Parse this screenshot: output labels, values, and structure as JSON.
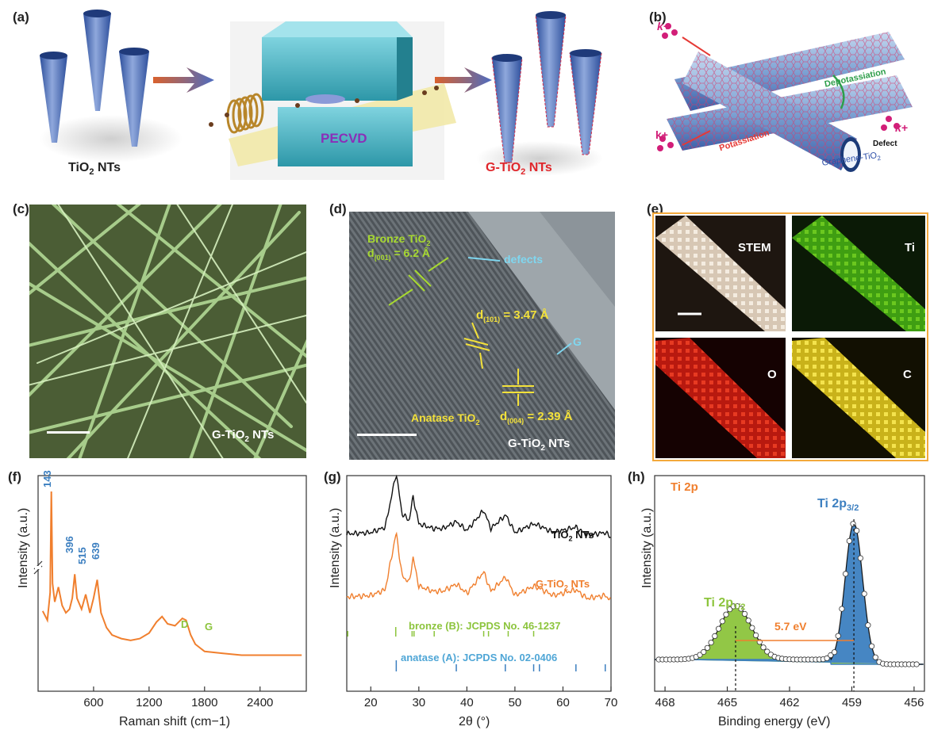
{
  "panels": {
    "a": "(a)",
    "b": "(b)",
    "c": "(c)",
    "d": "(d)",
    "e": "(e)",
    "f": "(f)",
    "g": "(g)",
    "h": "(h)"
  },
  "panel_a": {
    "left_label_main": "TiO",
    "left_label_sub": "2",
    "left_label_tail": " NTs",
    "center_label": "PECVD",
    "right_label_main": "G-TiO",
    "right_label_sub": "2",
    "right_label_tail": " NTs"
  },
  "panel_b": {
    "k1": "k+",
    "k2": "k+",
    "k3": "k+",
    "depotassiation": "Depotassiation",
    "potassiation": "Potassiation",
    "defect": "Defect",
    "graphene": "Graphene-TiO",
    "graphene_sub": "2"
  },
  "panel_c": {
    "label_main": "G-TiO",
    "label_sub": "2",
    "label_tail": " NTs"
  },
  "panel_d": {
    "bronze": "Bronze TiO",
    "bronze_sub": "2",
    "d001": "d",
    "d001_sub": "(001)",
    "d001_val": " = 6.2 Å",
    "defects": "defects",
    "d101": "d",
    "d101_sub": "(101)",
    "d101_val": " = 3.47 Å",
    "g_label": "G",
    "anatase": "Anatase TiO",
    "anatase_sub": "2",
    "d004": "d",
    "d004_sub": "(004)",
    "d004_val": " = 2.39 Å",
    "label_main": "G-TiO",
    "label_sub": "2",
    "label_tail": " NTs"
  },
  "panel_e": {
    "stem": "STEM",
    "ti": "Ti",
    "o": "O",
    "c": "C"
  },
  "panel_f": {
    "ylabel": "Intensity (a.u.)",
    "xlabel": "Raman shift (cm−1)",
    "peak_143": "143",
    "peak_396": "396",
    "peak_515": "515",
    "peak_639": "639",
    "peak_D": "D",
    "peak_G": "G",
    "xticks": [
      "600",
      "1200",
      "1800",
      "2400"
    ]
  },
  "panel_g": {
    "ylabel": "Intensity (a.u.)",
    "xlabel": "2θ (°)",
    "tio2": "TiO",
    "tio2_sub": "2",
    "tio2_tail": " NTs",
    "gtio2": "G-TiO",
    "gtio2_sub": "2",
    "gtio2_tail": " NTs",
    "bronze": "bronze (B): JCPDS No. 46-1237",
    "anatase": "anatase (A): JCPDS No. 02-0406",
    "xticks": [
      "20",
      "30",
      "40",
      "50",
      "60",
      "70"
    ]
  },
  "panel_h": {
    "ylabel": "Intensity (a.u.)",
    "xlabel": "Binding energy (eV)",
    "title": "Ti 2p",
    "p32": "Ti 2p",
    "p32_sub": "3/2",
    "p12": "Ti 2p",
    "p12_sub": "1/2",
    "split": "5.7 eV",
    "xticks": [
      "468",
      "465",
      "462",
      "459",
      "456"
    ]
  },
  "colors": {
    "orange": "#f07f2e",
    "blue": "#3c7fc0",
    "green": "#8cc43c",
    "black": "#111111",
    "lightblue": "#4fa6d6"
  },
  "chart_data": [
    {
      "type": "line",
      "panel": "f",
      "xlabel": "Raman shift (cm−1)",
      "ylabel": "Intensity (a.u.)",
      "xlim": [
        0,
        2900
      ],
      "series": [
        {
          "x": [
            50,
            100,
            130,
            143,
            156,
            180,
            220,
            260,
            300,
            340,
            370,
            396,
            420,
            470,
            515,
            560,
            600,
            639,
            680,
            740,
            800,
            900,
            1000,
            1100,
            1200,
            1280,
            1340,
            1400,
            1480,
            1560,
            1600,
            1650,
            1700,
            1800,
            2000,
            2200,
            2400,
            2600,
            2850
          ],
          "y": [
            0.35,
            0.3,
            0.45,
            1.0,
            0.5,
            0.4,
            0.48,
            0.38,
            0.34,
            0.36,
            0.42,
            0.55,
            0.42,
            0.36,
            0.44,
            0.34,
            0.42,
            0.52,
            0.34,
            0.26,
            0.22,
            0.2,
            0.19,
            0.2,
            0.23,
            0.29,
            0.32,
            0.28,
            0.27,
            0.31,
            0.3,
            0.22,
            0.17,
            0.13,
            0.12,
            0.11,
            0.11,
            0.11,
            0.11
          ]
        }
      ]
    },
    {
      "type": "line",
      "panel": "g",
      "xlabel": "2θ (°)",
      "ylabel": "Intensity (a.u.)",
      "xlim": [
        15,
        70
      ],
      "series": [
        {
          "name": "TiO2 NTs",
          "x": [
            15,
            20,
            23,
            25.3,
            26.5,
            28,
            28.8,
            30,
            33,
            35,
            37.8,
            40,
            43.5,
            45,
            48.1,
            50,
            53.9,
            55.1,
            58,
            62.7,
            65,
            68.8,
            70
          ],
          "y": [
            0.1,
            0.12,
            0.2,
            1.0,
            0.4,
            0.3,
            0.65,
            0.25,
            0.18,
            0.18,
            0.28,
            0.15,
            0.45,
            0.18,
            0.38,
            0.12,
            0.25,
            0.22,
            0.12,
            0.2,
            0.08,
            0.12,
            0.05
          ]
        },
        {
          "name": "G-TiO2 NTs",
          "x": [
            15,
            20,
            23,
            25.3,
            26.5,
            28,
            28.8,
            30,
            33,
            35,
            37.8,
            40,
            43.5,
            45,
            48.1,
            50,
            53.9,
            55.1,
            58,
            62.7,
            65,
            68.8,
            70
          ],
          "y": [
            0.1,
            0.12,
            0.2,
            1.0,
            0.4,
            0.3,
            0.65,
            0.25,
            0.18,
            0.18,
            0.28,
            0.15,
            0.45,
            0.18,
            0.38,
            0.12,
            0.25,
            0.22,
            0.12,
            0.2,
            0.08,
            0.12,
            0.05
          ]
        }
      ],
      "bronze_refs": [
        15.2,
        25.2,
        28.6,
        29.0,
        33.2,
        43.5,
        44.5,
        48.6,
        53.9
      ],
      "anatase_refs": [
        25.3,
        37.8,
        48.0,
        53.9,
        55.1,
        62.7,
        68.8
      ]
    },
    {
      "type": "line",
      "panel": "h",
      "xlabel": "Binding energy (eV)",
      "ylabel": "Intensity (a.u.)",
      "xlim": [
        468.5,
        455.5
      ],
      "peaks": [
        {
          "name": "Ti 2p3/2",
          "center": 458.9,
          "height": 1.0
        },
        {
          "name": "Ti 2p1/2",
          "center": 464.6,
          "height": 0.38
        }
      ],
      "split_eV": 5.7
    }
  ]
}
